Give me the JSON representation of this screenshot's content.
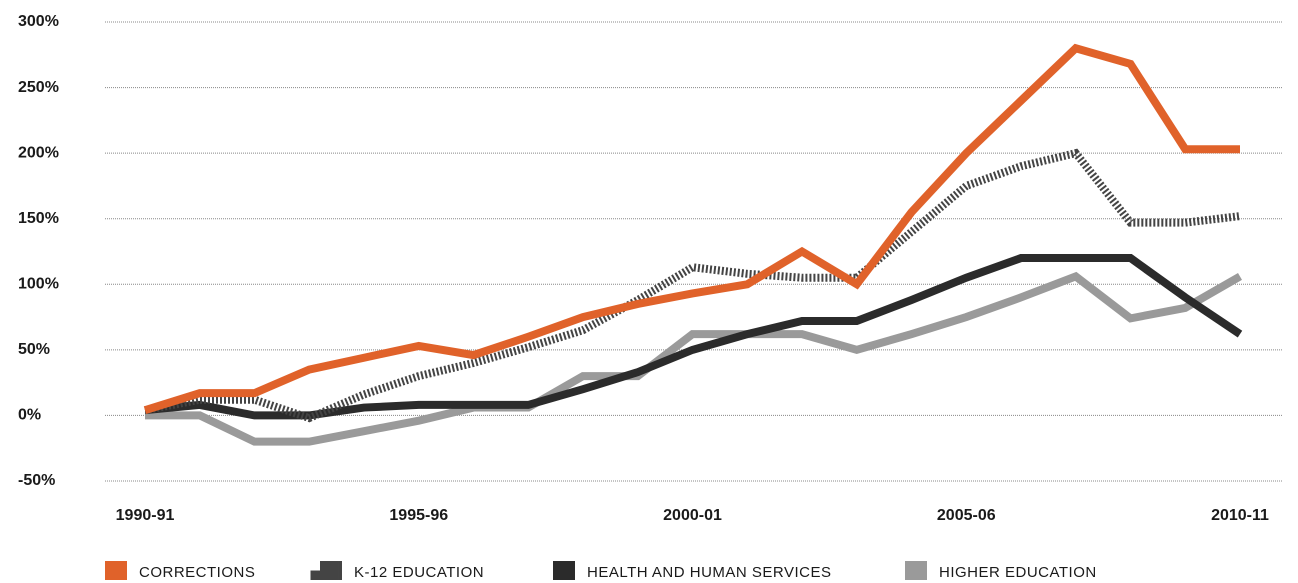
{
  "chart_data": {
    "type": "line",
    "categories": [
      "1990-91",
      null,
      null,
      null,
      null,
      "1995-96",
      null,
      null,
      null,
      null,
      "2000-01",
      null,
      null,
      null,
      null,
      "2005-06",
      null,
      null,
      null,
      null,
      "2010-11"
    ],
    "series": [
      {
        "name": "CORRECTIONS",
        "color": "#e0622a",
        "values": [
          4,
          17,
          17,
          35,
          44,
          53,
          46,
          60,
          75,
          85,
          93,
          100,
          125,
          100,
          155,
          200,
          240,
          280,
          268,
          203,
          203
        ]
      },
      {
        "name": "K-12 EDUCATION",
        "color": "#444444",
        "dash": "2 2",
        "values": [
          4,
          12,
          12,
          -2,
          16,
          30,
          40,
          52,
          65,
          88,
          113,
          108,
          105,
          105,
          140,
          175,
          190,
          200,
          147,
          147,
          152
        ]
      },
      {
        "name": "HEALTH AND HUMAN SERVICES",
        "color": "#2b2b2b",
        "values": [
          4,
          8,
          0,
          0,
          6,
          8,
          8,
          8,
          20,
          33,
          50,
          62,
          72,
          72,
          88,
          105,
          120,
          120,
          120,
          90,
          62
        ]
      },
      {
        "name": "HIGHER EDUCATION",
        "color": "#9a9a9a",
        "values": [
          0,
          0,
          -20,
          -20,
          -12,
          -4,
          6,
          6,
          30,
          30,
          62,
          62,
          62,
          50,
          62,
          75,
          90,
          106,
          74,
          82,
          106
        ]
      }
    ],
    "ylim": [
      -50,
      300
    ],
    "yticks": [
      {
        "value": -50,
        "label": "-50%"
      },
      {
        "value": 0,
        "label": "0%"
      },
      {
        "value": 50,
        "label": "50%"
      },
      {
        "value": 100,
        "label": "100%"
      },
      {
        "value": 150,
        "label": "150%"
      },
      {
        "value": 200,
        "label": "200%"
      },
      {
        "value": 250,
        "label": "250%"
      },
      {
        "value": 300,
        "label": "300%"
      }
    ],
    "grid": true
  }
}
